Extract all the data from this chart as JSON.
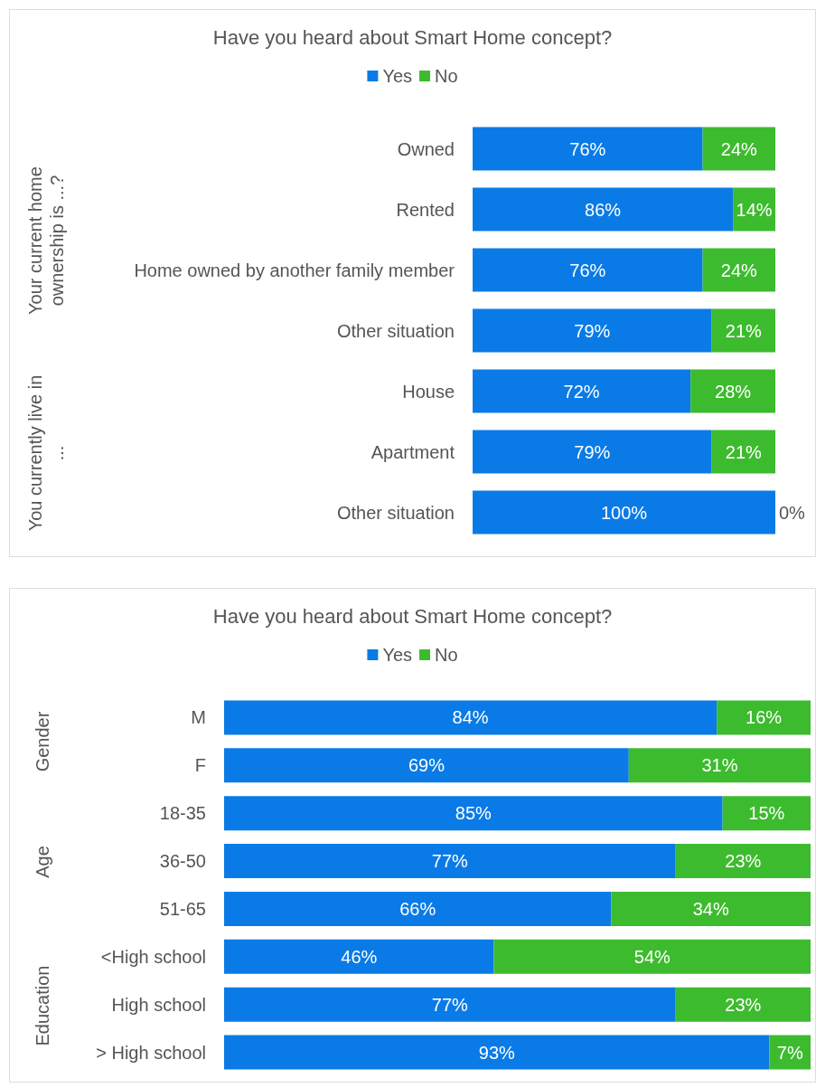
{
  "chart_data": [
    {
      "type": "bar",
      "orientation": "horizontal",
      "stacked": true,
      "title": "Have you heard about Smart Home concept?",
      "legend": "top",
      "categories": [
        "Owned",
        "Rented",
        "Home owned by another family member",
        "Other situation",
        "House",
        "Apartment",
        "Other situation"
      ],
      "annotations": [
        "Your current home ownership is ...?",
        "You currently live in ..."
      ],
      "series": [
        {
          "name": "Yes",
          "color": "#0a7be6",
          "values": [
            76,
            86,
            76,
            79,
            72,
            79,
            100
          ],
          "value_labels": [
            "76%",
            "86%",
            "76%",
            "79%",
            "72%",
            "79%",
            "100%"
          ]
        },
        {
          "name": "No",
          "color": "#3dbb2e",
          "values": [
            24,
            14,
            24,
            21,
            28,
            21,
            0
          ],
          "value_labels": [
            "24%",
            "14%",
            "24%",
            "21%",
            "28%",
            "21%",
            "0%"
          ]
        }
      ]
    },
    {
      "type": "bar",
      "orientation": "horizontal",
      "stacked": true,
      "title": "Have you heard about Smart Home concept?",
      "legend": "top",
      "categories": [
        "M",
        "F",
        "18-35",
        "36-50",
        "51-65",
        "<High school",
        "High school",
        "> High school"
      ],
      "annotations": [
        "Gender",
        "Age",
        "Education"
      ],
      "series": [
        {
          "name": "Yes",
          "color": "#0a7be6",
          "values": [
            84,
            69,
            85,
            77,
            66,
            46,
            77,
            93
          ],
          "value_labels": [
            "84%",
            "69%",
            "85%",
            "77%",
            "66%",
            "46%",
            "77%",
            "93%"
          ]
        },
        {
          "name": "No",
          "color": "#3dbb2e",
          "values": [
            16,
            31,
            15,
            23,
            34,
            54,
            23,
            7
          ],
          "value_labels": [
            "16%",
            "31%",
            "15%",
            "23%",
            "34%",
            "54%",
            "23%",
            "7%"
          ]
        }
      ]
    }
  ]
}
